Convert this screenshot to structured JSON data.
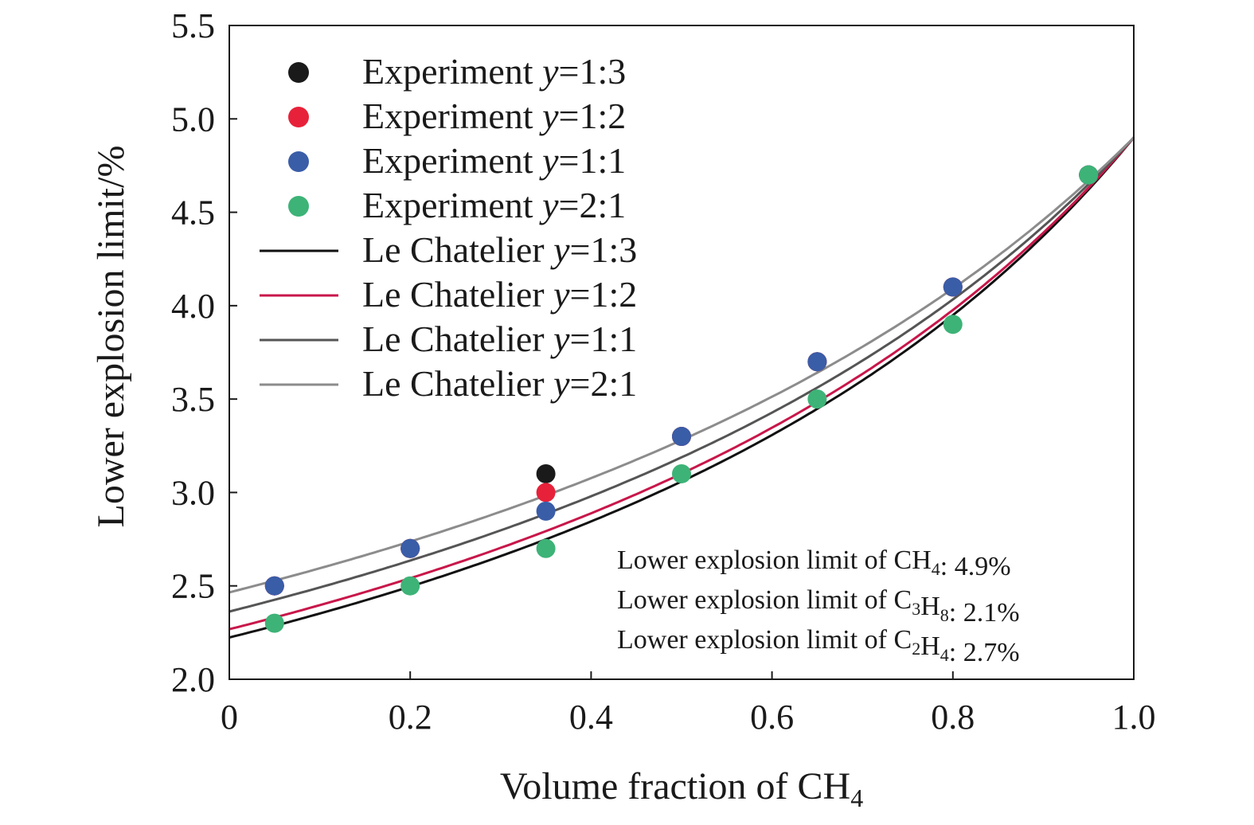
{
  "chart_data": {
    "type": "scatter",
    "xlabel": "Volume fraction of CH",
    "xlabel_sub": "4",
    "ylabel": "Lower explosion limit/%",
    "xlim": [
      0,
      1.0
    ],
    "ylim": [
      2.0,
      5.5
    ],
    "xticks": [
      "0",
      "0.2",
      "0.4",
      "0.6",
      "0.8",
      "1.0"
    ],
    "xtick_values": [
      0,
      0.2,
      0.4,
      0.6,
      0.8,
      1.0
    ],
    "yticks": [
      "2.0",
      "2.5",
      "3.0",
      "3.5",
      "4.0",
      "4.5",
      "5.0",
      "5.5"
    ],
    "ytick_values": [
      2.0,
      2.5,
      3.0,
      3.5,
      4.0,
      4.5,
      5.0,
      5.5
    ],
    "grid": false,
    "legend_position": "top-left",
    "experiment_series": [
      {
        "prefix": "Experiment ",
        "ratio": "=1:3",
        "color": "#1a1a1a",
        "x": [
          0.05,
          0.2,
          0.35,
          0.5,
          0.65,
          0.8,
          0.95
        ],
        "y": [
          2.5,
          2.7,
          3.1,
          3.3,
          3.7,
          4.1,
          4.7
        ]
      },
      {
        "prefix": "Experiment ",
        "ratio": "=1:2",
        "color": "#e8213a",
        "x": [
          0.05,
          0.2,
          0.35,
          0.5,
          0.65,
          0.8,
          0.95
        ],
        "y": [
          2.5,
          2.7,
          3.0,
          3.3,
          3.7,
          4.1,
          4.7
        ]
      },
      {
        "prefix": "Experiment ",
        "ratio": "=1:1",
        "color": "#3a5da8",
        "x": [
          0.05,
          0.2,
          0.35,
          0.5,
          0.65,
          0.8,
          0.95
        ],
        "y": [
          2.5,
          2.7,
          2.9,
          3.3,
          3.7,
          4.1,
          4.7
        ]
      },
      {
        "prefix": "Experiment ",
        "ratio": "=2:1",
        "color": "#3db377",
        "x": [
          0.05,
          0.2,
          0.35,
          0.5,
          0.65,
          0.8,
          0.95
        ],
        "y": [
          2.3,
          2.5,
          2.7,
          3.1,
          3.5,
          3.9,
          4.7
        ]
      }
    ],
    "model_series": [
      {
        "prefix": "Le Chatelier ",
        "ratio": "=1:3",
        "color": "#111111",
        "L2": 2.1,
        "L3": 2.7,
        "w2": 0.75,
        "w3": 0.25
      },
      {
        "prefix": "Le Chatelier ",
        "ratio": "=1:2",
        "color": "#c8174a",
        "L2": 2.1,
        "L3": 2.7,
        "w2": 0.6667,
        "w3": 0.3333
      },
      {
        "prefix": "Le Chatelier ",
        "ratio": "=1:1",
        "color": "#555555",
        "L2": 2.1,
        "L3": 2.7,
        "w2": 0.5,
        "w3": 0.5
      },
      {
        "prefix": "Le Chatelier ",
        "ratio": "=2:1",
        "color": "#8c8c8c",
        "L2": 2.1,
        "L3": 2.7,
        "w2": 0.3333,
        "w3": 0.6667
      }
    ],
    "legend_y_symbol": "y",
    "annotations": [
      {
        "text": "Lower explosion limit of CH",
        "formula_parts": [
          {
            "t": "CH",
            "sub": "4"
          }
        ],
        "value": ": 4.9%"
      },
      {
        "text": "Lower explosion limit of C",
        "formula_parts": [
          {
            "t": "C",
            "sub": "3"
          },
          {
            "t": "H",
            "sub": "8"
          }
        ],
        "value": ": 2.1%"
      },
      {
        "text": "Lower explosion limit of C",
        "formula_parts": [
          {
            "t": "C",
            "sub": "2"
          },
          {
            "t": "H",
            "sub": "4"
          }
        ],
        "value": ": 2.7%"
      }
    ],
    "ch4_lel": 4.9
  }
}
